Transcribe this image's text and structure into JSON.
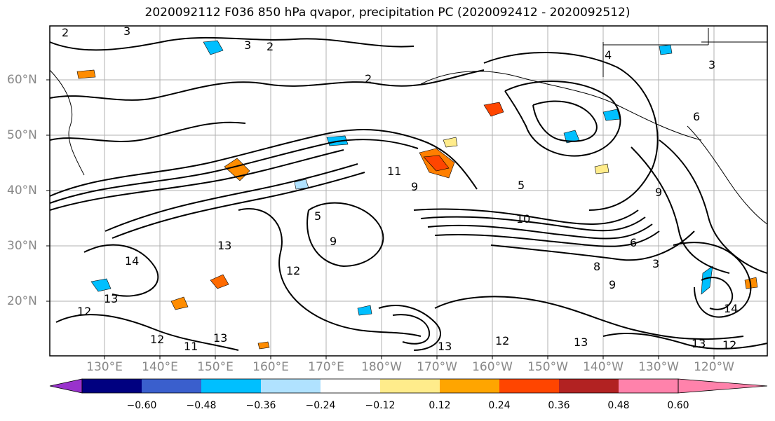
{
  "title": "2020092112 F036 850 hPa qvapor, precipitation PC (2020092412 - 2020092512)",
  "lat_labels": [
    "60°N",
    "50°N",
    "40°N",
    "30°N",
    "20°N"
  ],
  "lon_labels": [
    "130°E",
    "140°E",
    "150°E",
    "160°E",
    "170°E",
    "180°W",
    "170°W",
    "160°W",
    "150°W",
    "140°W",
    "130°W",
    "120°W"
  ],
  "colorbar": {
    "ticks": [
      "−0.60",
      "−0.48",
      "−0.36",
      "−0.24",
      "−0.12",
      "0.12",
      "0.24",
      "0.36",
      "0.48",
      "0.60"
    ],
    "colors": [
      "#9932cc",
      "#000080",
      "#3a5fcd",
      "#00bfff",
      "#b0e2ff",
      "#ffffff",
      "#ffec8b",
      "#ffa500",
      "#ff4500",
      "#b22222",
      "#ff82ab"
    ]
  },
  "contour_labels": [
    "2",
    "3",
    "2",
    "3",
    "2",
    "4",
    "3",
    "6",
    "5",
    "9",
    "11",
    "9",
    "5",
    "10",
    "13",
    "14",
    "12",
    "13",
    "12",
    "11",
    "13",
    "12",
    "13",
    "13",
    "12",
    "14",
    "6",
    "9",
    "8",
    "9",
    "3",
    "13",
    "12"
  ],
  "colors": {
    "contour": "#000000",
    "grid": "#b0b0b0",
    "coast": "#000000"
  }
}
